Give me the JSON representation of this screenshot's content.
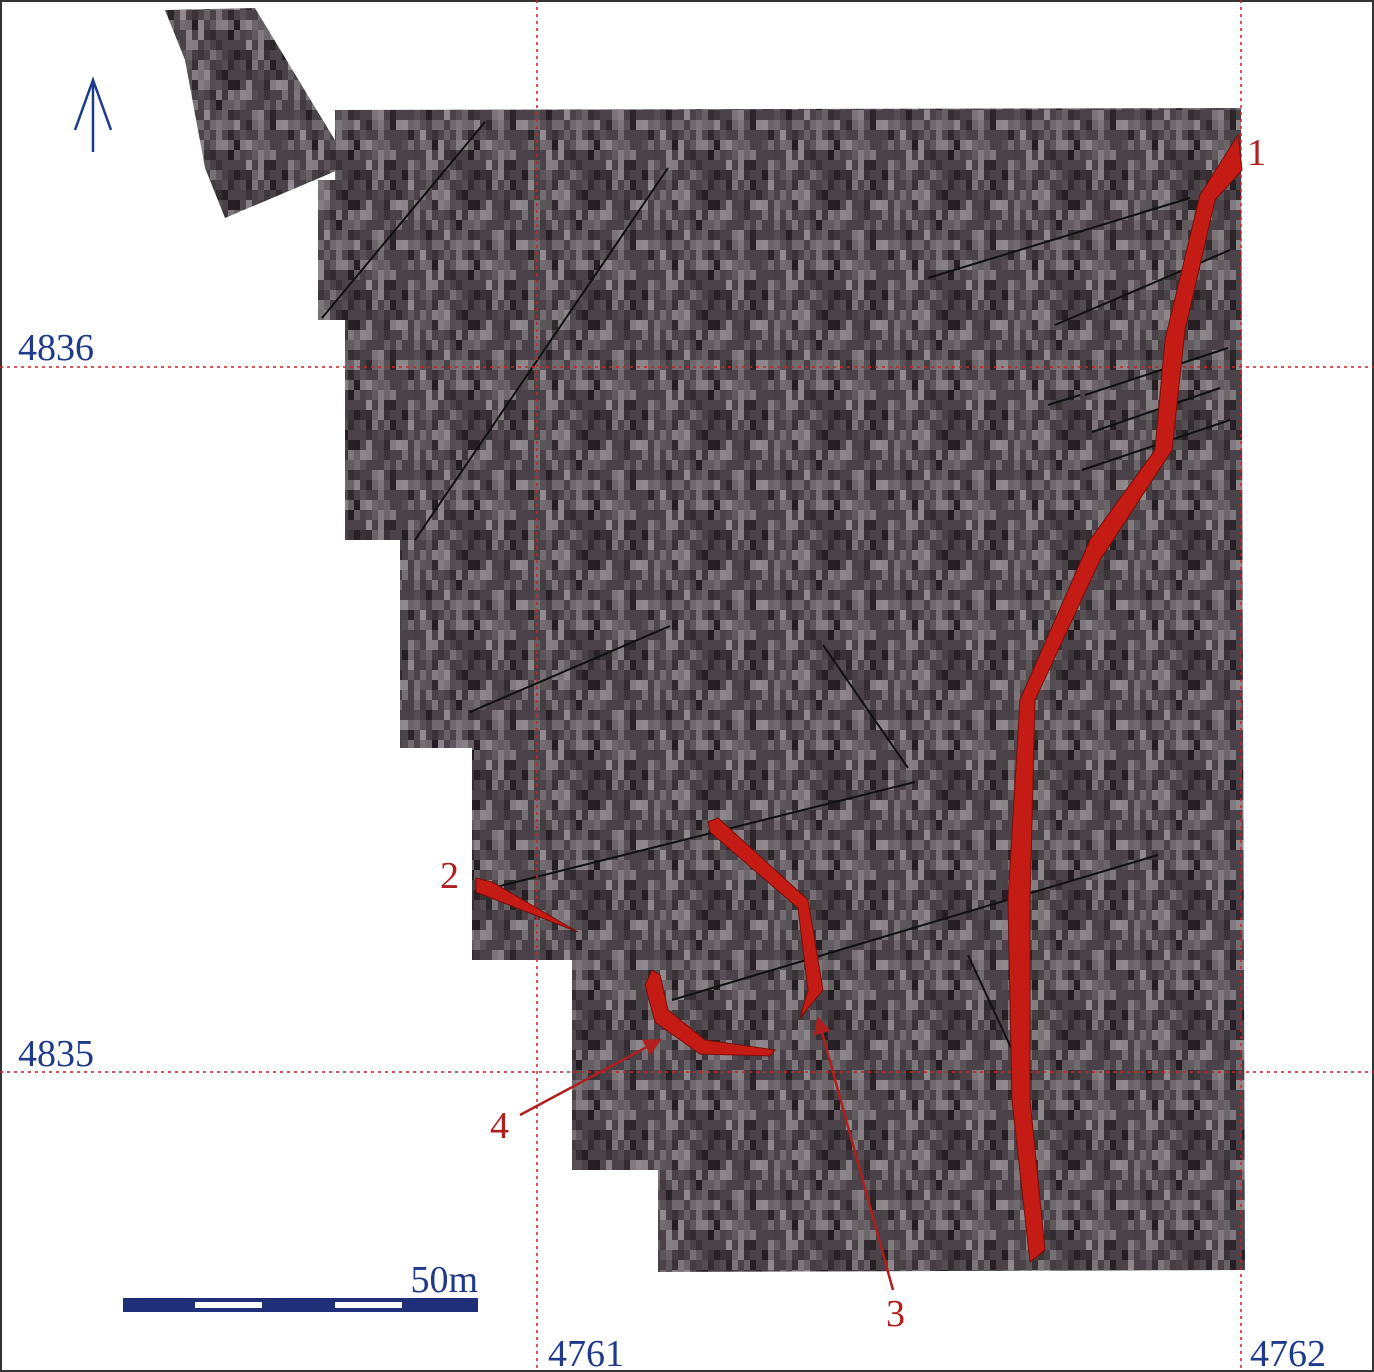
{
  "grid_labels": {
    "northing_top": "4836",
    "northing_bottom": "4835",
    "easting_left": "4761",
    "easting_right": "4762"
  },
  "features": {
    "f1": "1",
    "f2": "2",
    "f3": "3",
    "f4": "4"
  },
  "scale_bar": {
    "label": "50m"
  }
}
